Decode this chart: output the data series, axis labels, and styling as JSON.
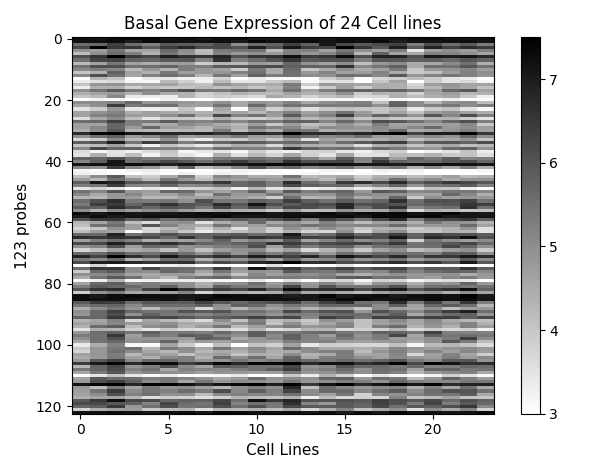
{
  "title": "Basal Gene Expression of 24 Cell lines",
  "xlabel": "Cell Lines",
  "ylabel": "123 probes",
  "n_probes": 123,
  "n_cell_lines": 24,
  "vmin": 3,
  "vmax": 7.5,
  "colormap": "gray_r",
  "figsize": [
    6.15,
    4.73
  ],
  "dpi": 100,
  "seed": 42,
  "xtick_locs": [
    0,
    5,
    10,
    15,
    20
  ],
  "ytick_locs": [
    0,
    20,
    40,
    60,
    80,
    100,
    120
  ],
  "colorbar_ticks": [
    3,
    4,
    5,
    6,
    7
  ],
  "dark_rows": [
    0,
    1,
    41,
    57,
    58,
    84,
    85,
    122
  ],
  "bright_rows": [
    20,
    43,
    44
  ],
  "row_std": 0.9,
  "cell_std": 0.25,
  "within_std": 0.35,
  "base_mean": 5.2,
  "title_fontsize": 12
}
